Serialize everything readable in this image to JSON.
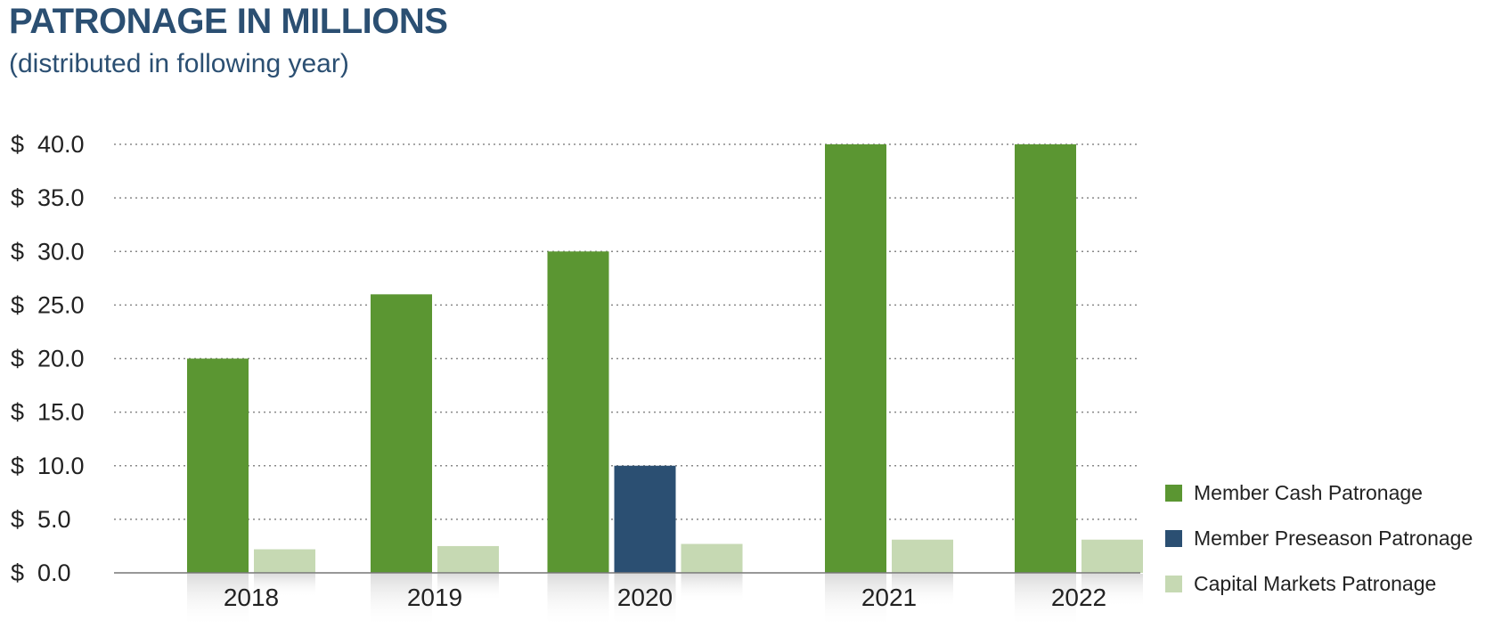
{
  "header": {
    "title": "PATRONAGE IN MILLIONS",
    "subtitle": "(distributed in following year)"
  },
  "colors": {
    "member_cash": "#5b9632",
    "member_preseason": "#2b4f72",
    "capital_markets": "#c6d9b3",
    "title": "#2b4f72",
    "grid": "#888888"
  },
  "chart_data": {
    "type": "bar",
    "title": "PATRONAGE IN MILLIONS",
    "subtitle": "(distributed in following year)",
    "categories": [
      "2018",
      "2019",
      "2020",
      "2021",
      "2022"
    ],
    "series": [
      {
        "name": "Member Cash Patronage",
        "values": [
          20.0,
          26.0,
          30.0,
          40.0,
          40.0
        ],
        "color": "#5b9632"
      },
      {
        "name": "Member Preseason Patronage",
        "values": [
          null,
          null,
          10.0,
          null,
          null
        ],
        "color": "#2b4f72"
      },
      {
        "name": "Capital Markets Patronage",
        "values": [
          2.2,
          2.5,
          2.7,
          3.1,
          3.1
        ],
        "color": "#c6d9b3"
      }
    ],
    "ylim": [
      0,
      40
    ],
    "yticks": [
      0,
      5,
      10,
      15,
      20,
      25,
      30,
      35,
      40
    ],
    "ytick_labels": [
      "$  0.0",
      "$  5.0",
      "$  10.0",
      "$  15.0",
      "$  20.0",
      "$  25.0",
      "$  30.0",
      "$  35.0",
      "$  40.0"
    ],
    "grid": "dotted horizontal",
    "legend_position": "right"
  }
}
